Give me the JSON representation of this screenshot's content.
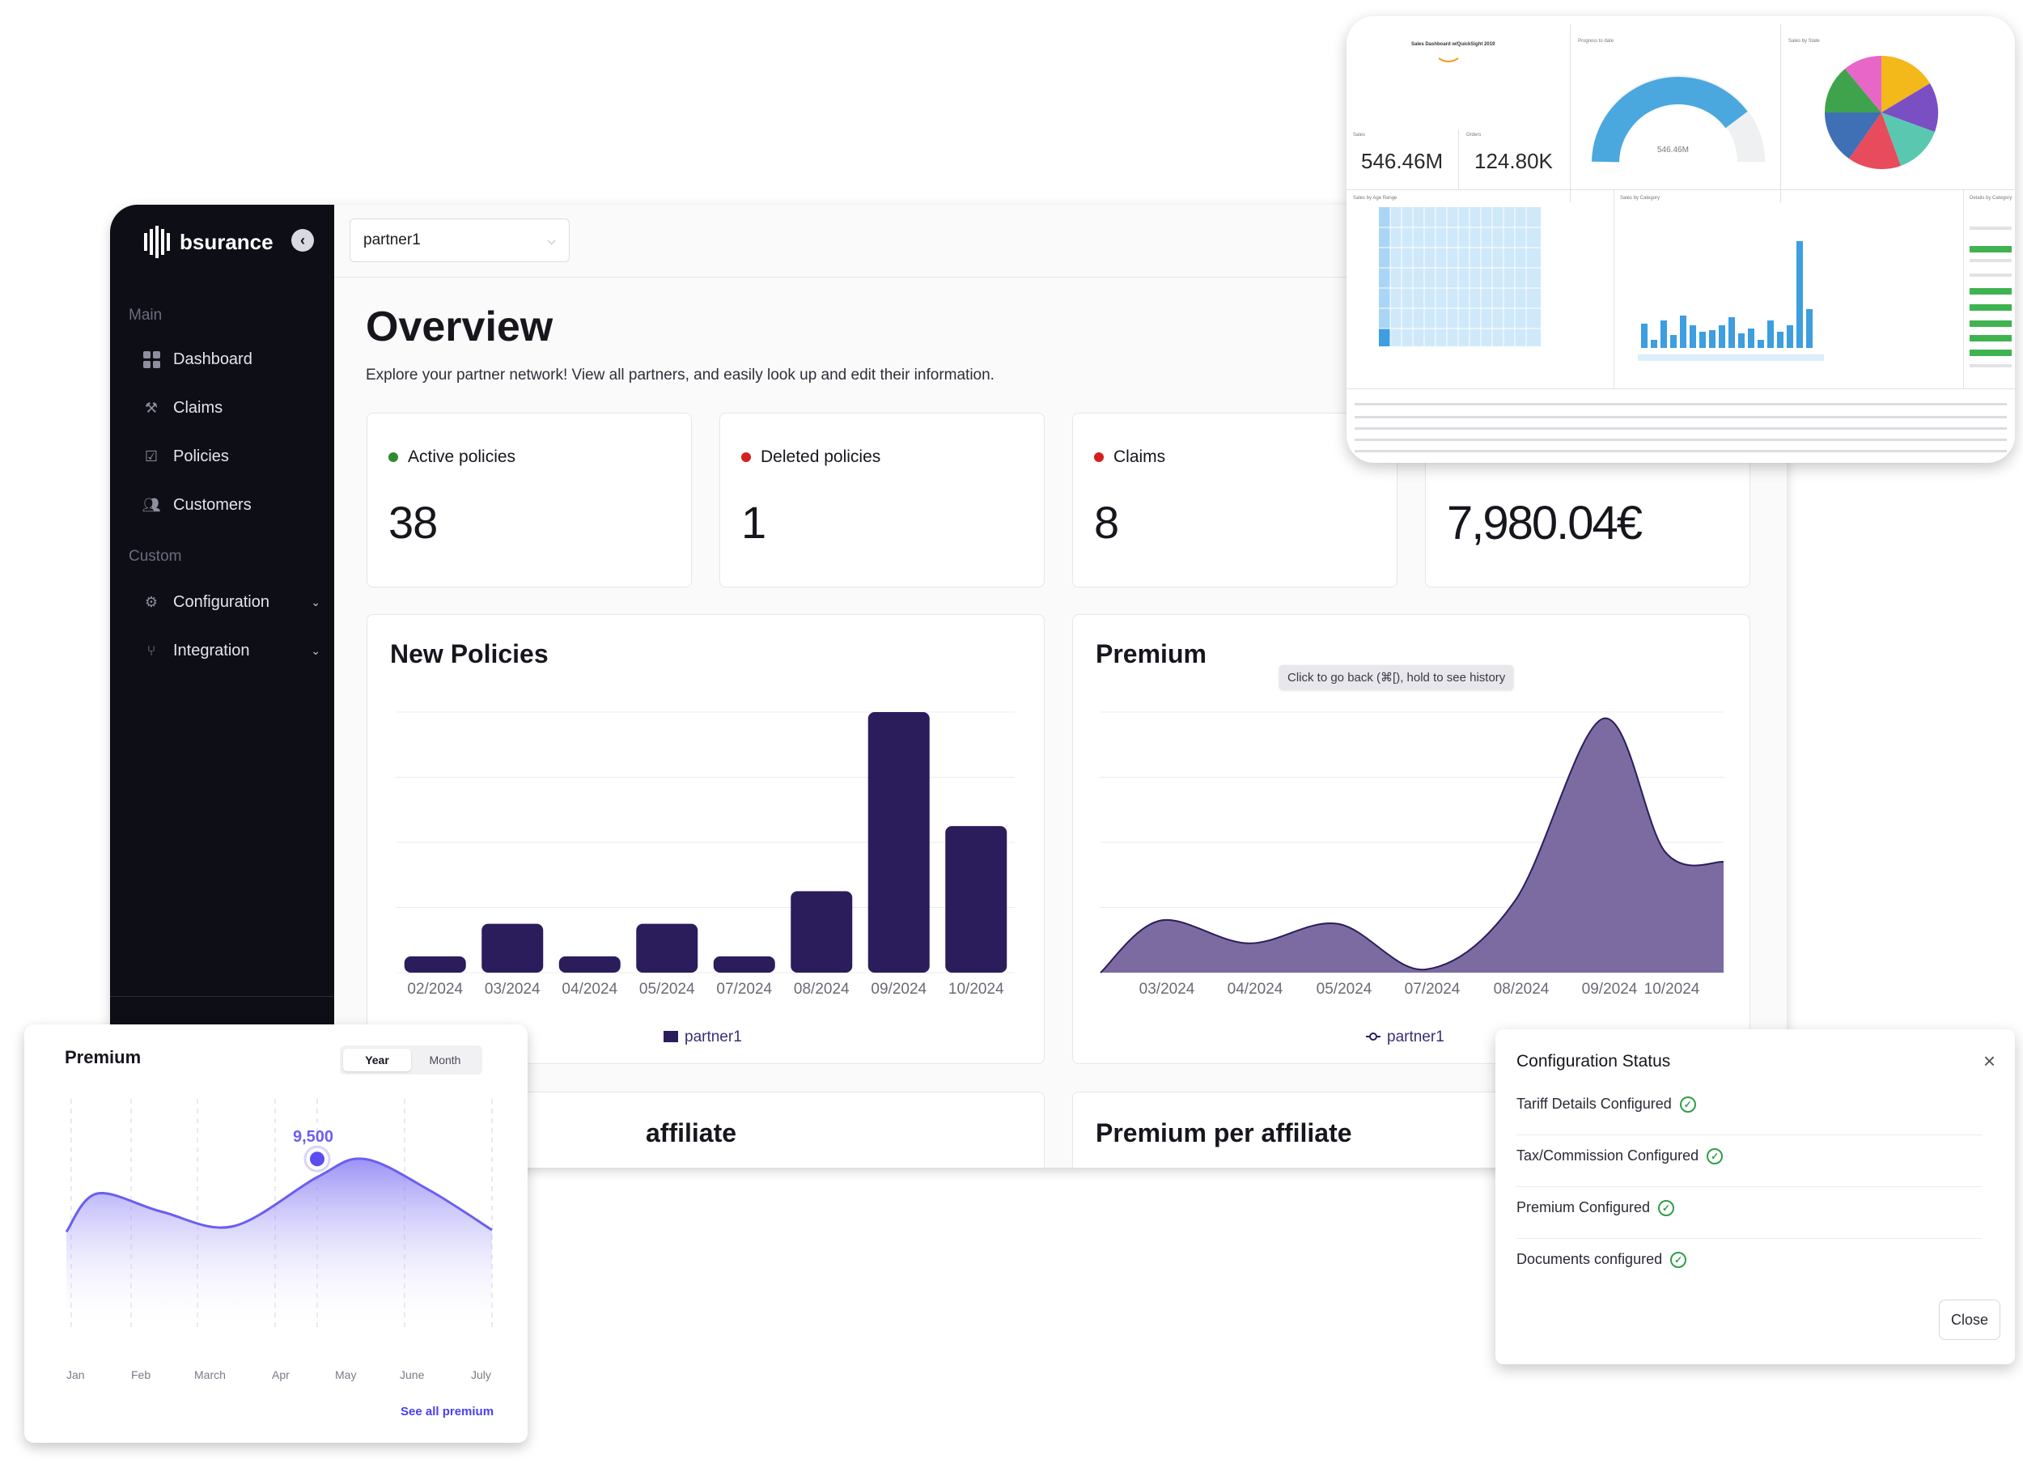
{
  "sidebar": {
    "brand": "bsurance",
    "sections": [
      "Main",
      "Custom"
    ],
    "items": [
      {
        "label": "Dashboard"
      },
      {
        "label": "Claims"
      },
      {
        "label": "Policies"
      },
      {
        "label": "Customers"
      },
      {
        "label": "Configuration"
      },
      {
        "label": "Integration"
      }
    ]
  },
  "header": {
    "partner_select": "partner1"
  },
  "overview": {
    "title": "Overview",
    "subtitle": "Explore your partner network! View all partners, and easily look up and edit their information."
  },
  "stats": [
    {
      "label": "Active policies",
      "value": "38",
      "color": "#2e8b2e"
    },
    {
      "label": "Deleted policies",
      "value": "1",
      "color": "#d42020"
    },
    {
      "label": "Claims",
      "value": "8",
      "color": "#d42020"
    },
    {
      "label": "",
      "value": "7,980.04€",
      "color": ""
    }
  ],
  "charts": {
    "new_policies": {
      "title": "New Policies"
    },
    "premium": {
      "title": "Premium",
      "tooltip": "Click to go back (⌘[), hold to see history"
    },
    "bottom_left_title": "affiliate",
    "bottom_right_title": "Premium per affiliate"
  },
  "chart_data": [
    {
      "type": "bar",
      "title": "New Policies",
      "categories": [
        "02/2024",
        "03/2024",
        "04/2024",
        "05/2024",
        "07/2024",
        "08/2024",
        "09/2024",
        "10/2024"
      ],
      "series": [
        {
          "name": "partner1",
          "values": [
            1,
            3,
            1,
            3,
            1,
            5,
            16,
            9
          ]
        }
      ],
      "ylim": [
        0,
        16
      ],
      "grid": true,
      "color": "#2b1d5c",
      "legend": "bottom"
    },
    {
      "type": "area",
      "title": "Premium",
      "categories": [
        "03/2024",
        "04/2024",
        "05/2024",
        "07/2024",
        "08/2024",
        "09/2024",
        "10/2024"
      ],
      "series": [
        {
          "name": "partner1",
          "values": [
            800,
            450,
            750,
            50,
            1100,
            3900,
            1850
          ]
        }
      ],
      "ylim": [
        0,
        4000
      ],
      "grid": true,
      "color": "#7b6ba0",
      "legend": "bottom"
    },
    {
      "type": "area",
      "title": "Premium",
      "categories": [
        "Jan",
        "Feb",
        "March",
        "Apr",
        "May",
        "June",
        "July"
      ],
      "series": [
        {
          "name": "Premium",
          "values": [
            7600,
            6600,
            5800,
            8500,
            9500,
            7800,
            5600
          ]
        }
      ],
      "peak_label": "9,500",
      "color": "#6a5ef0",
      "legend": "none"
    }
  ],
  "quicksight": {
    "title": "Sales Dashboard w/QuickSight 2019",
    "kpis": [
      {
        "label": "Sales",
        "value": "546.46M"
      },
      {
        "label": "Orders",
        "value": "124.80K"
      }
    ],
    "gauge_label": "Progress to date",
    "gauge_value": "546.46M",
    "pie_label": "Sales by State",
    "heatmap_label": "Sales by Age Range",
    "bar_label": "Sales by Category",
    "table_label": "Details by Category"
  },
  "mini_widget": {
    "title": "Premium",
    "toggle": [
      "Year",
      "Month"
    ],
    "active": "Year",
    "peak": "9,500",
    "link": "See all premium"
  },
  "config_modal": {
    "title": "Configuration Status",
    "items": [
      "Tariff Details Configured",
      "Tax/Commission Configured",
      "Premium Configured",
      "Documents configured"
    ],
    "close": "Close"
  },
  "colors": {
    "sidebar_bg": "#0e0e16",
    "bar": "#2b1d5c",
    "area": "#7b6ba0",
    "accent": "#6a5ef0",
    "success": "#2f9e48"
  }
}
